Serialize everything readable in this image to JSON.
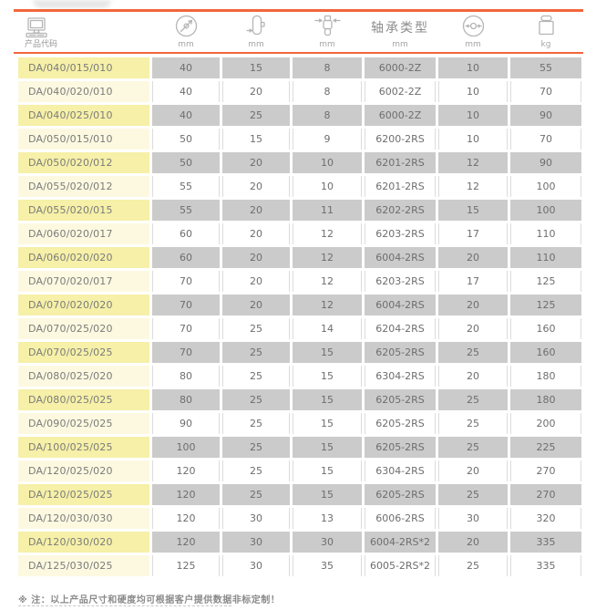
{
  "colors": {
    "accent_orange": "#F2663B",
    "row_yellow_dark": "#F6F0A8",
    "row_yellow_light": "#FCF9E0",
    "cell_gray": "#CBCBCB"
  },
  "header": {
    "columns": [
      {
        "id": "product-code",
        "icon": "monitor-icon",
        "label": "产品代码",
        "unit": ""
      },
      {
        "id": "wheel-diameter",
        "icon": "diameter-icon",
        "label": "",
        "unit": "mm"
      },
      {
        "id": "wheel-width",
        "icon": "wheel-width-icon",
        "label": "",
        "unit": "mm"
      },
      {
        "id": "hub-length",
        "icon": "axle-width-icon",
        "label": "",
        "unit": "mm"
      },
      {
        "id": "bearing-type",
        "icon": "",
        "label": "轴承类型",
        "unit": "mm"
      },
      {
        "id": "bore-diameter",
        "icon": "bore-diameter-icon",
        "label": "",
        "unit": "mm"
      },
      {
        "id": "load-capacity",
        "icon": "weight-icon",
        "label": "",
        "unit": "kg"
      }
    ]
  },
  "table": {
    "rows": [
      [
        "DA/040/015/010",
        "40",
        "15",
        "8",
        "6000-2Z",
        "10",
        "55"
      ],
      [
        "DA/040/020/010",
        "40",
        "20",
        "8",
        "6002-2Z",
        "10",
        "70"
      ],
      [
        "DA/040/025/010",
        "40",
        "25",
        "8",
        "6000-2Z",
        "10",
        "90"
      ],
      [
        "DA/050/015/010",
        "50",
        "15",
        "9",
        "6200-2RS",
        "10",
        "70"
      ],
      [
        "DA/050/020/012",
        "50",
        "20",
        "10",
        "6201-2RS",
        "12",
        "90"
      ],
      [
        "DA/055/020/012",
        "55",
        "20",
        "10",
        "6201-2RS",
        "12",
        "100"
      ],
      [
        "DA/055/020/015",
        "55",
        "20",
        "11",
        "6202-2RS",
        "15",
        "100"
      ],
      [
        "DA/060/020/017",
        "60",
        "20",
        "12",
        "6203-2RS",
        "17",
        "110"
      ],
      [
        "DA/060/020/020",
        "60",
        "20",
        "12",
        "6004-2RS",
        "20",
        "110"
      ],
      [
        "DA/070/020/017",
        "70",
        "20",
        "12",
        "6203-2RS",
        "17",
        "125"
      ],
      [
        "DA/070/020/020",
        "70",
        "20",
        "12",
        "6004-2RS",
        "20",
        "125"
      ],
      [
        "DA/070/025/020",
        "70",
        "25",
        "14",
        "6204-2RS",
        "20",
        "160"
      ],
      [
        "DA/070/025/025",
        "70",
        "25",
        "15",
        "6205-2RS",
        "25",
        "160"
      ],
      [
        "DA/080/025/020",
        "80",
        "25",
        "15",
        "6304-2RS",
        "20",
        "180"
      ],
      [
        "DA/080/025/025",
        "80",
        "25",
        "15",
        "6205-2RS",
        "25",
        "180"
      ],
      [
        "DA/090/025/025",
        "90",
        "25",
        "15",
        "6205-2RS",
        "25",
        "200"
      ],
      [
        "DA/100/025/025",
        "100",
        "25",
        "15",
        "6205-2RS",
        "25",
        "225"
      ],
      [
        "DA/120/025/020",
        "120",
        "25",
        "15",
        "6304-2RS",
        "20",
        "270"
      ],
      [
        "DA/120/025/025",
        "120",
        "25",
        "15",
        "6205-2RS",
        "25",
        "270"
      ],
      [
        "DA/120/030/030",
        "120",
        "30",
        "13",
        "6006-2RS",
        "30",
        "320"
      ],
      [
        "DA/120/030/020",
        "120",
        "30",
        "30",
        "6004-2RS*2",
        "20",
        "335"
      ],
      [
        "DA/125/030/025",
        "125",
        "30",
        "35",
        "6005-2RS*2",
        "25",
        "335"
      ]
    ]
  },
  "footer": {
    "note": "※ 注：以上产品尺寸和硬度均可根据客户提供数据非标定制！"
  }
}
